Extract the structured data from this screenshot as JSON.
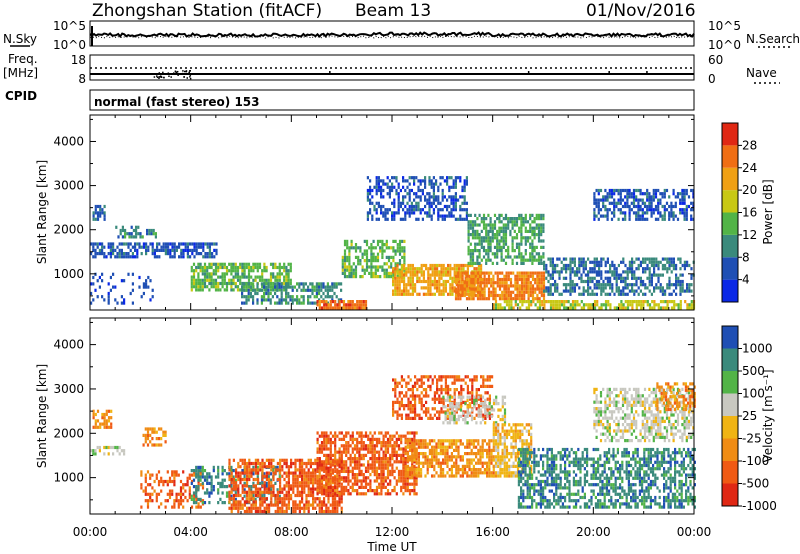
{
  "header": {
    "station": "Zhongshan Station (fitACF)",
    "beam": "Beam 13",
    "date": "01/Nov/2016"
  },
  "status_panel": {
    "nsky_label": "N.Sky",
    "nsearch_label": "N.Search",
    "noise_ticks": [
      "10^5",
      "10^0"
    ],
    "freq_label": "Freq.",
    "freq_unit": "[MHz]",
    "freq_ticks": [
      "18",
      "8"
    ],
    "nave_label": "Nave",
    "nave_ticks": [
      "60",
      "0"
    ],
    "cpid_label": "CPID",
    "cpid_value": "normal (fast stereo) 153",
    "freq_mhz": 10,
    "nave_mean": 18
  },
  "colors": {
    "power": [
      "#0a28e6",
      "#1f4fb4",
      "#3a8a7c",
      "#52b447",
      "#c8c814",
      "#f0a014",
      "#f06e14",
      "#e02814"
    ],
    "velocity": [
      "#e02814",
      "#f05a14",
      "#f08c14",
      "#f0b414",
      "#c8c8c0",
      "#52b447",
      "#3a8a7c",
      "#1f4fb4"
    ]
  },
  "chart_data": [
    {
      "type": "heatmap",
      "name": "power",
      "ylabel": "Slant Range [km]",
      "yticks": [
        1000,
        2000,
        3000,
        4000
      ],
      "ylim": [
        180,
        4600
      ],
      "xticks": [
        "00:00",
        "04:00",
        "08:00",
        "12:00",
        "16:00",
        "20:00",
        "00:00"
      ],
      "xlim_hours": [
        0,
        24
      ],
      "colorbar": {
        "label": "Power [dB]",
        "ticks": [
          "28",
          "24",
          "20",
          "16",
          "12",
          "8",
          "4"
        ],
        "range": [
          0,
          32
        ]
      },
      "regions": [
        {
          "t0": 0.1,
          "t1": 0.6,
          "r0": 2200,
          "r1": 2550,
          "value": 7,
          "density": 0.5
        },
        {
          "t0": 1.0,
          "t1": 2.6,
          "r0": 1800,
          "r1": 2050,
          "value": 10,
          "density": 0.5
        },
        {
          "t0": 0.0,
          "t1": 5.0,
          "r0": 1350,
          "r1": 1700,
          "value": 6,
          "density": 0.6
        },
        {
          "t0": 0.0,
          "t1": 2.5,
          "r0": 300,
          "r1": 1000,
          "value": 5,
          "density": 0.2
        },
        {
          "t0": 4.0,
          "t1": 8.0,
          "r0": 600,
          "r1": 1200,
          "value": 14,
          "density": 0.7
        },
        {
          "t0": 6.0,
          "t1": 10.0,
          "r0": 300,
          "r1": 800,
          "value": 10,
          "density": 0.6
        },
        {
          "t0": 9.0,
          "t1": 11.0,
          "r0": 190,
          "r1": 360,
          "value": 26,
          "density": 0.9
        },
        {
          "t0": 10.0,
          "t1": 12.5,
          "r0": 900,
          "r1": 1700,
          "value": 14,
          "density": 0.6
        },
        {
          "t0": 12.0,
          "t1": 15.5,
          "r0": 500,
          "r1": 1200,
          "value": 22,
          "density": 0.8
        },
        {
          "t0": 14.5,
          "t1": 18.0,
          "r0": 400,
          "r1": 1000,
          "value": 25,
          "density": 0.85
        },
        {
          "t0": 11.0,
          "t1": 15.0,
          "r0": 2200,
          "r1": 3150,
          "value": 6,
          "density": 0.5
        },
        {
          "t0": 15.0,
          "t1": 18.0,
          "r0": 1200,
          "r1": 2300,
          "value": 12,
          "density": 0.6
        },
        {
          "t0": 18.0,
          "t1": 24.0,
          "r0": 500,
          "r1": 1300,
          "value": 8,
          "density": 0.6
        },
        {
          "t0": 20.0,
          "t1": 24.0,
          "r0": 2200,
          "r1": 2900,
          "value": 6,
          "density": 0.6
        },
        {
          "t0": 16.0,
          "t1": 24.0,
          "r0": 190,
          "r1": 380,
          "value": 18,
          "density": 0.7
        }
      ]
    },
    {
      "type": "heatmap",
      "name": "velocity",
      "ylabel": "Slant Range [km]",
      "yticks": [
        1000,
        2000,
        3000,
        4000
      ],
      "ylim": [
        180,
        4600
      ],
      "xticks": [
        "00:00",
        "04:00",
        "08:00",
        "12:00",
        "16:00",
        "20:00",
        "00:00"
      ],
      "xlim_hours": [
        0,
        24
      ],
      "xlabel": "Time UT",
      "colorbar": {
        "label": "Velocity [m s⁻¹]",
        "ticks": [
          "1000",
          "500",
          "100",
          "25",
          "-25",
          "-100",
          "-500",
          "-1000"
        ],
        "range_index": [
          0,
          8
        ]
      },
      "regions": [
        {
          "t0": 0.0,
          "t1": 1.5,
          "r0": 1500,
          "r1": 1700,
          "value": 4,
          "density": 0.5
        },
        {
          "t0": 0.1,
          "t1": 0.8,
          "r0": 2100,
          "r1": 2500,
          "value": 2,
          "density": 0.5
        },
        {
          "t0": 2.0,
          "t1": 3.0,
          "r0": 1700,
          "r1": 2100,
          "value": 2,
          "density": 0.5
        },
        {
          "t0": 2.0,
          "t1": 4.5,
          "r0": 300,
          "r1": 1100,
          "value": 1,
          "density": 0.4
        },
        {
          "t0": 4.0,
          "t1": 7.5,
          "r0": 400,
          "r1": 1200,
          "value": 6,
          "density": 0.4
        },
        {
          "t0": 5.5,
          "t1": 10.0,
          "r0": 200,
          "r1": 1400,
          "value": 1,
          "density": 0.7
        },
        {
          "t0": 9.0,
          "t1": 13.0,
          "r0": 600,
          "r1": 2000,
          "value": 1,
          "density": 0.7
        },
        {
          "t0": 12.0,
          "t1": 16.0,
          "r0": 2300,
          "r1": 3250,
          "value": 1,
          "density": 0.5
        },
        {
          "t0": 12.5,
          "t1": 16.0,
          "r0": 1000,
          "r1": 1800,
          "value": 2,
          "density": 0.7
        },
        {
          "t0": 14.0,
          "t1": 16.5,
          "r0": 2200,
          "r1": 2800,
          "value": 4,
          "density": 0.5
        },
        {
          "t0": 16.0,
          "t1": 17.5,
          "r0": 1000,
          "r1": 2200,
          "value": 3,
          "density": 0.7
        },
        {
          "t0": 17.0,
          "t1": 24.0,
          "r0": 300,
          "r1": 1600,
          "value": 6,
          "density": 0.6
        },
        {
          "t0": 20.0,
          "t1": 24.0,
          "r0": 1800,
          "r1": 3000,
          "value": 4,
          "density": 0.6
        },
        {
          "t0": 22.5,
          "t1": 24.0,
          "r0": 2500,
          "r1": 3100,
          "value": 2,
          "density": 0.6
        }
      ]
    }
  ]
}
